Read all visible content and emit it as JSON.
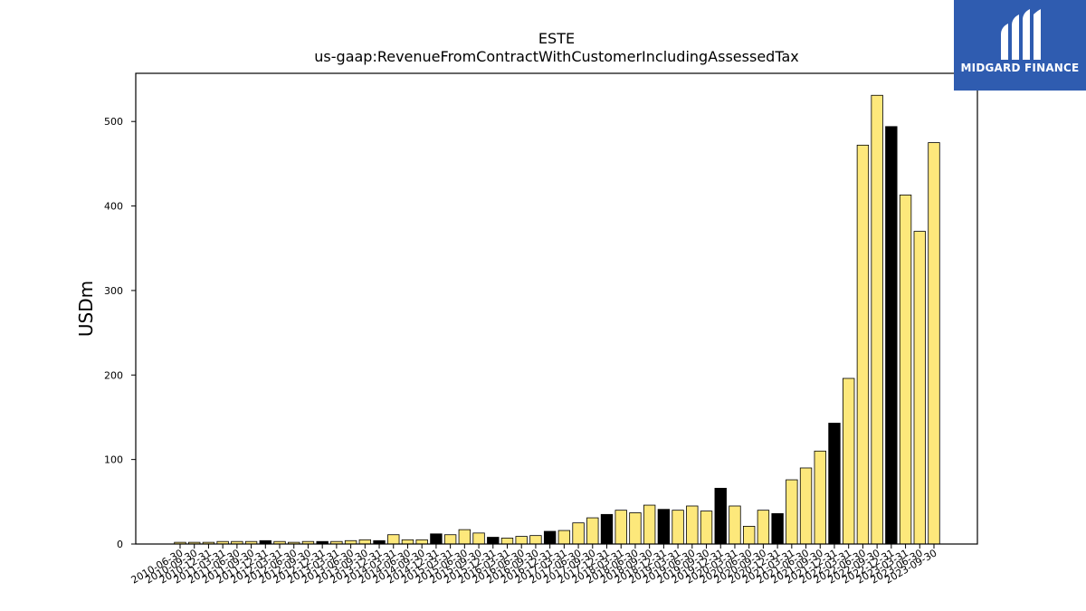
{
  "chart_data": {
    "type": "bar",
    "title": "ESTE",
    "subtitle": "us-gaap:RevenueFromContractWithCustomerIncludingAssessedTax",
    "xlabel": "",
    "ylabel": "USDm",
    "ylim": [
      0,
      557
    ],
    "yticks": [
      0,
      100,
      200,
      300,
      400,
      500
    ],
    "grid": false,
    "categories": [
      "2010-06-30",
      "2010-09-30",
      "2010-12-31",
      "2011-03-31",
      "2011-06-30",
      "2011-09-30",
      "2011-12-31",
      "2012-03-31",
      "2012-06-30",
      "2012-09-30",
      "2012-12-31",
      "2013-03-31",
      "2013-06-30",
      "2013-09-30",
      "2013-12-31",
      "2014-03-31",
      "2014-06-30",
      "2014-09-30",
      "2014-12-31",
      "2015-03-31",
      "2015-06-30",
      "2015-09-30",
      "2015-12-31",
      "2016-03-31",
      "2016-06-30",
      "2016-09-30",
      "2016-12-31",
      "2017-03-31",
      "2017-06-30",
      "2017-09-30",
      "2017-12-31",
      "2018-03-31",
      "2018-06-30",
      "2018-09-30",
      "2018-12-31",
      "2019-03-31",
      "2019-06-30",
      "2019-09-30",
      "2019-12-31",
      "2020-03-31",
      "2020-06-30",
      "2020-09-30",
      "2020-12-31",
      "2021-03-31",
      "2021-06-30",
      "2021-09-30",
      "2021-12-31",
      "2022-03-31",
      "2022-06-30",
      "2022-09-30",
      "2022-12-31",
      "2023-03-31",
      "2023-06-30",
      "2023-09-30"
    ],
    "values": [
      2,
      2,
      2,
      3,
      3,
      3,
      4,
      3,
      2,
      3,
      3,
      3,
      4,
      5,
      4,
      11,
      5,
      5,
      12,
      11,
      17,
      13,
      8,
      7,
      9,
      10,
      15,
      16,
      25,
      31,
      35,
      40,
      37,
      46,
      41,
      40,
      45,
      39,
      66,
      45,
      21,
      40,
      36,
      76,
      90,
      110,
      143,
      196,
      472,
      531,
      494,
      413,
      370,
      475
    ],
    "bar_kind": [
      "q",
      "q",
      "q",
      "q",
      "q",
      "q",
      "fy",
      "q",
      "q",
      "q",
      "fy",
      "q",
      "q",
      "q",
      "fy",
      "q",
      "q",
      "q",
      "fy",
      "q",
      "q",
      "q",
      "fy",
      "q",
      "q",
      "q",
      "fy",
      "q",
      "q",
      "q",
      "fy",
      "q",
      "q",
      "q",
      "fy",
      "q",
      "q",
      "q",
      "fy",
      "q",
      "q",
      "q",
      "fy",
      "q",
      "q",
      "q",
      "fy",
      "q",
      "q",
      "q",
      "fy",
      "q",
      "q",
      "q"
    ],
    "colors": {
      "quarter": "#fde87b",
      "fiscal_year_end": "#000000",
      "edge": "#000000"
    }
  },
  "logo": {
    "text": "MIDGARD FINANCE",
    "background": "#2f5cb0"
  }
}
